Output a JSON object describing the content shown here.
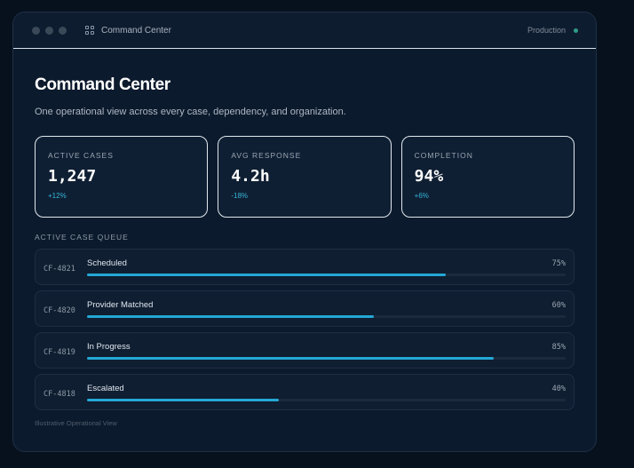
{
  "window": {
    "title": "Command Center",
    "environment": "Production",
    "icons": [
      "traffic-dots",
      "grid-icon",
      "status-dot-icon"
    ]
  },
  "page": {
    "title": "Command Center",
    "subtitle": "One operational view across every case, dependency, and organization."
  },
  "stats": [
    {
      "label": "ACTIVE CASES",
      "value": "1,247",
      "delta": "+12%"
    },
    {
      "label": "AVG RESPONSE",
      "value": "4.2h",
      "delta": "-18%"
    },
    {
      "label": "COMPLETION",
      "value": "94%",
      "delta": "+6%"
    }
  ],
  "queue": {
    "label": "ACTIVE CASE QUEUE",
    "rows": [
      {
        "id": "CF-4821",
        "status": "Scheduled",
        "percent": "75%",
        "progress": 75
      },
      {
        "id": "CF-4820",
        "status": "Provider Matched",
        "percent": "60%",
        "progress": 60
      },
      {
        "id": "CF-4819",
        "status": "In Progress",
        "percent": "85%",
        "progress": 85
      },
      {
        "id": "CF-4818",
        "status": "Escalated",
        "percent": "40%",
        "progress": 40
      }
    ]
  },
  "footnote": "Illustrative Operational View",
  "colors": {
    "background": "#07111d",
    "panel": "#0c1a2d",
    "accent": "#24a8d6",
    "delta": "#35b6d8",
    "status_dot": "#2f9c88"
  }
}
